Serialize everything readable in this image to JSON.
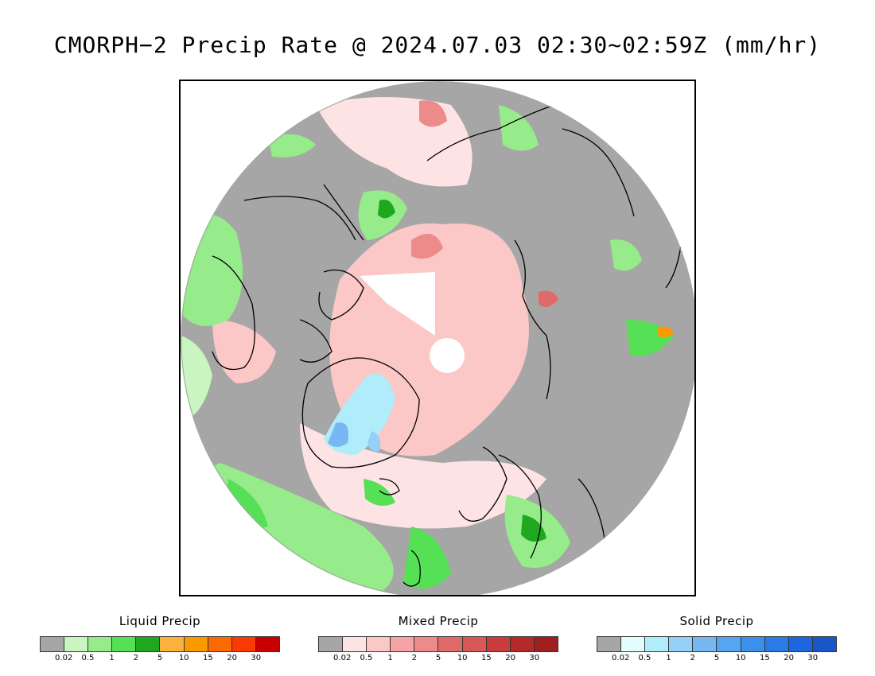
{
  "title": "CMORPH−2 Precip Rate @ 2024.07.03 02:30~02:59Z (mm/hr)",
  "legends": [
    {
      "id": "liquid",
      "title": "Liquid Precip",
      "colors": [
        "#a6a6a6",
        "#c8f5c0",
        "#96ec8a",
        "#55e055",
        "#1fa81f",
        "#fbb23c",
        "#fa9a00",
        "#fa6a00",
        "#fa3a00",
        "#c80000"
      ],
      "ticks": [
        "0.02",
        "0.5",
        "1",
        "2",
        "5",
        "10",
        "15",
        "20",
        "30"
      ]
    },
    {
      "id": "mixed",
      "title": "Mixed Precip",
      "colors": [
        "#a6a6a6",
        "#fde3e3",
        "#fbc7c7",
        "#f4a4a4",
        "#ed8a8a",
        "#e06a6a",
        "#d85757",
        "#c83c3c",
        "#b42a2a",
        "#a02020"
      ],
      "ticks": [
        "0.02",
        "0.5",
        "1",
        "2",
        "5",
        "10",
        "15",
        "20",
        "30"
      ]
    },
    {
      "id": "solid",
      "title": "Solid Precip",
      "colors": [
        "#a6a6a6",
        "#e3fcfe",
        "#b1ecfa",
        "#94d0f8",
        "#77b8f3",
        "#55a6f0",
        "#3c90ec",
        "#2a7ae8",
        "#1c66e0",
        "#1a56c8"
      ],
      "ticks": [
        "0.02",
        "0.5",
        "1",
        "2",
        "5",
        "10",
        "15",
        "20",
        "30"
      ]
    }
  ],
  "map": {
    "background": "#a6a6a6",
    "coastline_color": "#000000"
  }
}
